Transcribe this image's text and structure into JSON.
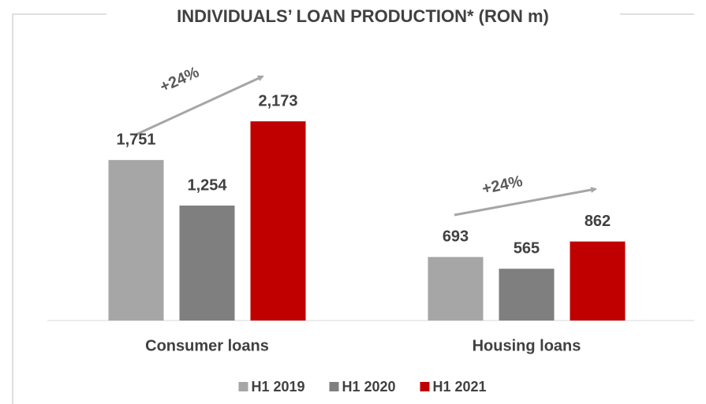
{
  "chart_data": {
    "type": "bar",
    "title": "INDIVIDUALS’ LOAN PRODUCTION* (RON m)",
    "categories": [
      "Consumer loans",
      "Housing loans"
    ],
    "series": [
      {
        "name": "H1 2019",
        "color": "#a6a6a6",
        "values": [
          1751,
          693
        ],
        "value_labels": [
          "1,751",
          "693"
        ]
      },
      {
        "name": "H1 2020",
        "color": "#7f7f7f",
        "values": [
          1254,
          565
        ],
        "value_labels": [
          "1,254",
          "565"
        ]
      },
      {
        "name": "H1 2021",
        "color": "#c00000",
        "values": [
          2173,
          862
        ],
        "value_labels": [
          "2,173",
          "862"
        ]
      }
    ],
    "ylim": [
      0,
      2500
    ],
    "annotations": [
      "+24%",
      "+24%"
    ],
    "legend": "bottom"
  }
}
